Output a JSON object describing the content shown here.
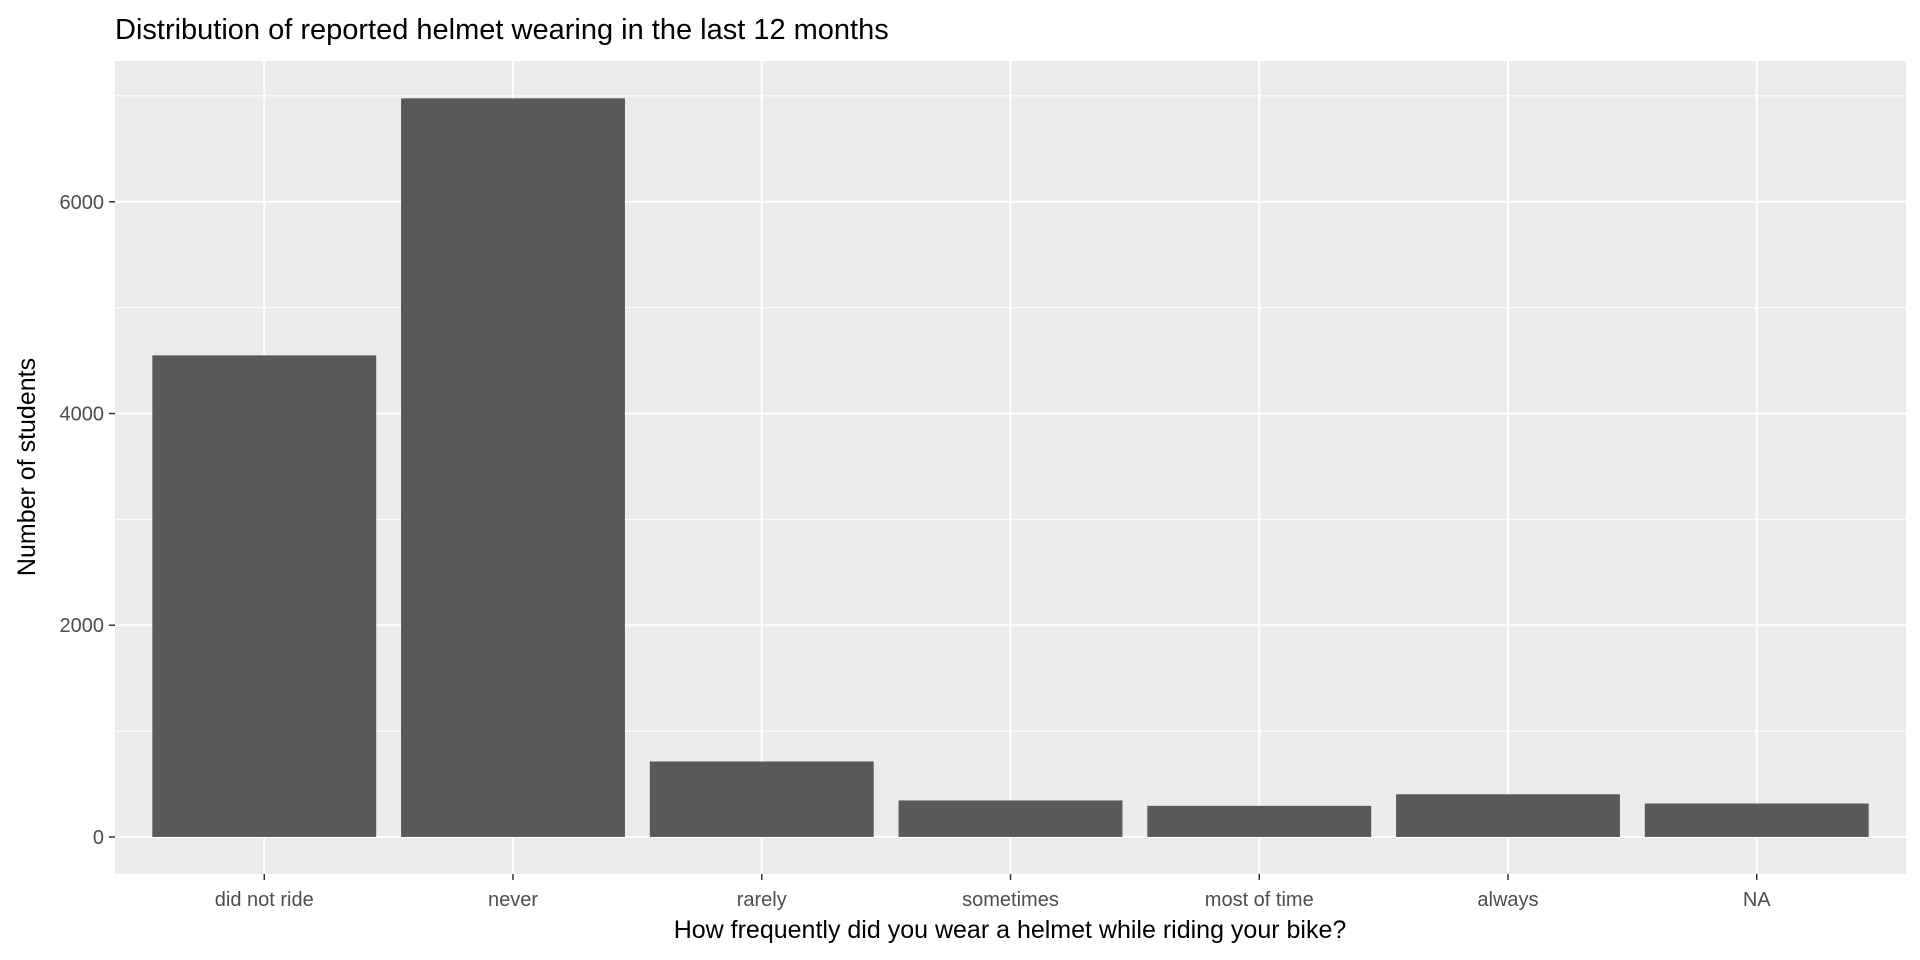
{
  "chart_data": {
    "type": "bar",
    "title": "Distribution of reported helmet wearing in the last 12 months",
    "xlabel": "How frequently did you wear a helmet while riding your bike?",
    "ylabel": "Number of students",
    "categories": [
      "did not ride",
      "never",
      "rarely",
      "sometimes",
      "most of time",
      "always",
      "NA"
    ],
    "values": [
      4549,
      6977,
      713,
      345,
      294,
      403,
      316
    ],
    "ylim": [
      -350,
      7330
    ],
    "yticks": [
      0,
      2000,
      4000,
      6000
    ],
    "ytick_labels": [
      "0",
      "2000",
      "4000",
      "6000"
    ],
    "grid": true,
    "colors": {
      "panel_background": "#ebebeb",
      "grid": "#ffffff",
      "bar_fill": "#595959"
    }
  }
}
